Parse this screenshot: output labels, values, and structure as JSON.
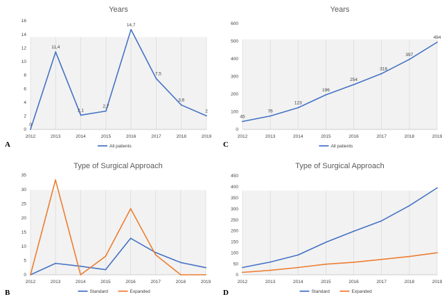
{
  "colors": {
    "blue": "#4472c4",
    "orange": "#ed7d31",
    "grid": "#d9d9d9",
    "band": "#f2f2f2"
  },
  "panel_letters": [
    "A",
    "C",
    "B",
    "D"
  ],
  "chart_data": [
    {
      "id": "A",
      "type": "line",
      "title": "Years",
      "categories": [
        "2012",
        "2013",
        "2014",
        "2015",
        "2016",
        "2017",
        "2018",
        "2019"
      ],
      "ylim": [
        0,
        16
      ],
      "yticks": [
        0,
        2,
        4,
        6,
        8,
        10,
        12,
        14,
        16
      ],
      "series": [
        {
          "name": "All patients",
          "color": "#4472c4",
          "values": [
            0,
            11.4,
            2.1,
            2.7,
            14.7,
            7.5,
            3.6,
            2
          ],
          "labels": [
            "0",
            "11,4",
            "2,1",
            "2,7",
            "14,7",
            "7,5",
            "3,6",
            "2"
          ]
        }
      ],
      "legend": "bottom",
      "vgrid": true
    },
    {
      "id": "C",
      "type": "line",
      "title": "Years",
      "categories": [
        "2012",
        "2013",
        "2014",
        "2015",
        "2016",
        "2017",
        "2018",
        "2019"
      ],
      "ylim": [
        0,
        600
      ],
      "yticks": [
        0,
        100,
        200,
        300,
        400,
        500,
        600
      ],
      "series": [
        {
          "name": "All patients",
          "color": "#4472c4",
          "values": [
            45,
            76,
            123,
            196,
            254,
            316,
            397,
            494
          ],
          "labels": [
            "45",
            "76",
            "123",
            "196",
            "254",
            "316",
            "397",
            "494"
          ]
        }
      ],
      "legend": "bottom",
      "vgrid": true
    },
    {
      "id": "B",
      "type": "line",
      "title": "Type of Surgical Approach",
      "categories": [
        "2012",
        "2013",
        "2014",
        "2015",
        "2016",
        "2017",
        "2018",
        "2019"
      ],
      "ylim": [
        0,
        35
      ],
      "yticks": [
        0,
        5,
        10,
        15,
        20,
        25,
        30,
        35
      ],
      "series": [
        {
          "name": "Standard",
          "color": "#4472c4",
          "values": [
            0,
            4,
            3,
            1.8,
            12.8,
            7.8,
            4.3,
            2.5
          ]
        },
        {
          "name": "Expanded",
          "color": "#ed7d31",
          "values": [
            0,
            33.3,
            0,
            6.5,
            23.2,
            7,
            0,
            0
          ]
        }
      ],
      "legend": "bottom",
      "vgrid": true
    },
    {
      "id": "D",
      "type": "line",
      "title": "Type of Surgical Approach",
      "categories": [
        "2012",
        "2013",
        "2014",
        "2015",
        "2016",
        "2017",
        "2018",
        "2019"
      ],
      "ylim": [
        0,
        450
      ],
      "yticks": [
        0,
        50,
        100,
        150,
        200,
        250,
        300,
        350,
        400,
        450
      ],
      "series": [
        {
          "name": "Standard",
          "color": "#4472c4",
          "values": [
            33,
            58,
            90,
            148,
            198,
            245,
            314,
            395
          ]
        },
        {
          "name": "Expanded",
          "color": "#ed7d31",
          "values": [
            11,
            20,
            33,
            48,
            57,
            70,
            83,
            100
          ]
        }
      ],
      "legend": "bottom",
      "vgrid": true
    }
  ]
}
